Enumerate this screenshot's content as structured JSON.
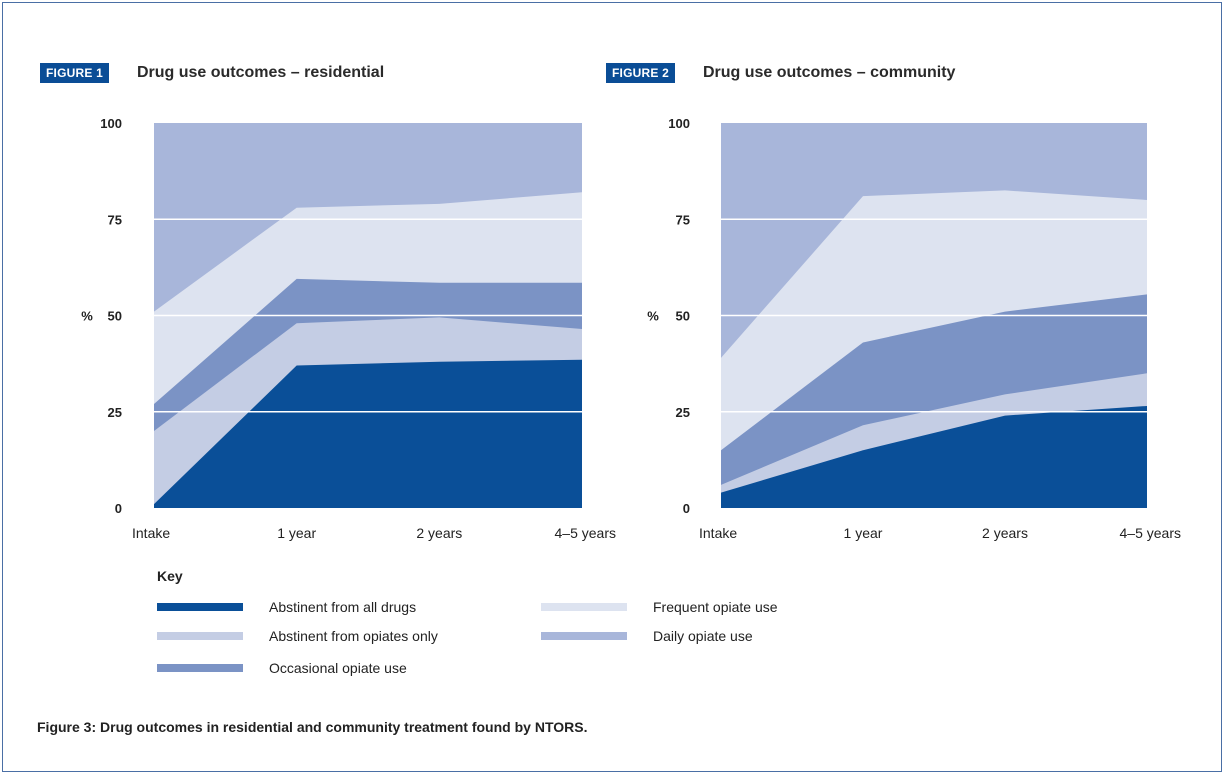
{
  "caption": "Figure 3: Drug outcomes in residential and community treatment found by NTORS.",
  "key": {
    "title": "Key",
    "items": [
      {
        "label": "Abstinent from all drugs",
        "color": "#0a4f98"
      },
      {
        "label": "Abstinent from opiates only",
        "color": "#c4cde4"
      },
      {
        "label": "Occasional opiate use",
        "color": "#7b93c5"
      },
      {
        "label": "Frequent opiate use",
        "color": "#dde3f0"
      },
      {
        "label": "Daily opiate use",
        "color": "#a8b6da"
      }
    ]
  },
  "chart_data": [
    {
      "type": "area",
      "badge": "FIGURE 1",
      "title": "Drug use outcomes – residential",
      "ylabel": "%",
      "ylim": [
        0,
        100
      ],
      "yticks": [
        0,
        25,
        50,
        75,
        100
      ],
      "categories": [
        "Intake",
        "1 year",
        "2 years",
        "4–5 years"
      ],
      "stacking": "cumulative",
      "series": [
        {
          "name": "Abstinent from all drugs",
          "values": [
            1,
            37,
            38,
            38.5
          ]
        },
        {
          "name": "Abstinent from opiates only",
          "values": [
            20,
            48,
            49.5,
            46.5
          ]
        },
        {
          "name": "Occasional opiate use",
          "values": [
            27,
            59.5,
            58.5,
            58.5
          ]
        },
        {
          "name": "Frequent opiate use",
          "values": [
            51,
            78,
            79,
            82
          ]
        },
        {
          "name": "Daily opiate use",
          "values": [
            100,
            100,
            100,
            100
          ]
        }
      ]
    },
    {
      "type": "area",
      "badge": "FIGURE 2",
      "title": "Drug use outcomes – community",
      "ylabel": "%",
      "ylim": [
        0,
        100
      ],
      "yticks": [
        0,
        25,
        50,
        75,
        100
      ],
      "categories": [
        "Intake",
        "1 year",
        "2 years",
        "4–5 years"
      ],
      "stacking": "cumulative",
      "series": [
        {
          "name": "Abstinent from all drugs",
          "values": [
            4,
            15,
            24,
            26.5
          ]
        },
        {
          "name": "Abstinent from opiates only",
          "values": [
            6,
            21.5,
            29.5,
            35
          ]
        },
        {
          "name": "Occasional opiate use",
          "values": [
            15,
            43,
            51,
            55.5
          ]
        },
        {
          "name": "Frequent opiate use",
          "values": [
            39,
            81,
            82.5,
            80
          ]
        },
        {
          "name": "Daily opiate use",
          "values": [
            100,
            100,
            100,
            100
          ]
        }
      ]
    }
  ]
}
